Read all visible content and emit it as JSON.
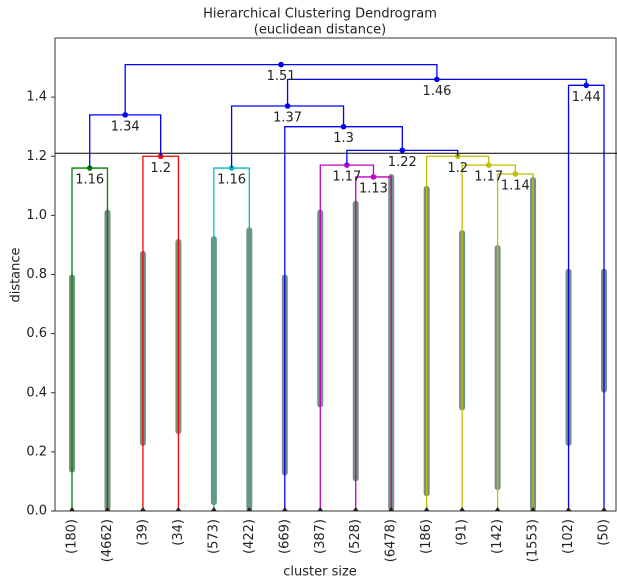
{
  "chart_data": {
    "type": "dendrogram",
    "title": "Hierarchical Clustering Dendrogram",
    "subtitle": "(euclidean distance)",
    "x_label": "cluster size",
    "y_label": "distance",
    "categories": [
      "(180)",
      "(4662)",
      "(39)",
      "(34)",
      "(573)",
      "(422)",
      "(669)",
      "(387)",
      "(528)",
      "(6478)",
      "(186)",
      "(91)",
      "(142)",
      "(1553)",
      "(102)",
      "(50)"
    ],
    "ylim": [
      0,
      1.6
    ],
    "yticks": [
      {
        "value": 0,
        "label": "0.0"
      },
      0.2,
      0.4,
      0.6,
      0.8,
      {
        "value": 1,
        "label": "1.0"
      },
      1.2,
      1.4
    ],
    "threshold": 1.21,
    "point_color": "#1a4a2a",
    "point_ranges": [
      [
        0.13,
        0.8
      ],
      [
        0,
        1.02
      ],
      [
        0.22,
        0.88
      ],
      [
        0.26,
        0.92
      ],
      [
        0.02,
        0.93
      ],
      [
        0,
        0.96
      ],
      [
        0.12,
        0.8
      ],
      [
        0.35,
        1.02
      ],
      [
        0.1,
        1.05
      ],
      [
        0,
        1.14
      ],
      [
        0.05,
        1.1
      ],
      [
        0.34,
        0.95
      ],
      [
        0.07,
        0.9
      ],
      [
        0,
        1.13
      ],
      [
        0.22,
        0.82
      ],
      [
        0.4,
        0.82
      ]
    ],
    "links": [
      {
        "children": [
          {
            "leaf": 0
          },
          {
            "leaf": 1
          }
        ],
        "height": 1.16,
        "color": "#008000"
      },
      {
        "children": [
          {
            "leaf": 2
          },
          {
            "leaf": 3
          }
        ],
        "height": 1.2,
        "color": "#ff0000"
      },
      {
        "children": [
          {
            "link": 0
          },
          {
            "link": 1
          }
        ],
        "height": 1.34,
        "color": "#0000ff"
      },
      {
        "children": [
          {
            "leaf": 4
          },
          {
            "leaf": 5
          }
        ],
        "height": 1.16,
        "color": "#00bfbf"
      },
      {
        "children": [
          {
            "leaf": 8
          },
          {
            "leaf": 9
          }
        ],
        "height": 1.13,
        "color": "#bf00bf"
      },
      {
        "children": [
          {
            "leaf": 7
          },
          {
            "link": 4
          }
        ],
        "height": 1.17,
        "color": "#bf00bf"
      },
      {
        "children": [
          {
            "leaf": 12
          },
          {
            "leaf": 13
          }
        ],
        "height": 1.14,
        "color": "#bfbf00"
      },
      {
        "children": [
          {
            "leaf": 11
          },
          {
            "link": 6
          }
        ],
        "height": 1.17,
        "color": "#bfbf00"
      },
      {
        "children": [
          {
            "leaf": 10
          },
          {
            "link": 7
          }
        ],
        "height": 1.2,
        "color": "#bfbf00"
      },
      {
        "children": [
          {
            "link": 5
          },
          {
            "link": 8
          }
        ],
        "height": 1.22,
        "color": "#0000ff"
      },
      {
        "children": [
          {
            "leaf": 6
          },
          {
            "link": 9
          }
        ],
        "height": 1.3,
        "color": "#0000ff"
      },
      {
        "children": [
          {
            "link": 3
          },
          {
            "link": 10
          }
        ],
        "height": 1.37,
        "color": "#0000ff"
      },
      {
        "children": [
          {
            "leaf": 14
          },
          {
            "leaf": 15
          }
        ],
        "height": 1.44,
        "color": "#0000ff"
      },
      {
        "children": [
          {
            "link": 11
          },
          {
            "link": 12
          }
        ],
        "height": 1.46,
        "color": "#0000ff"
      },
      {
        "children": [
          {
            "link": 2
          },
          {
            "link": 13
          }
        ],
        "height": 1.51,
        "color": "#0000ff"
      }
    ]
  }
}
